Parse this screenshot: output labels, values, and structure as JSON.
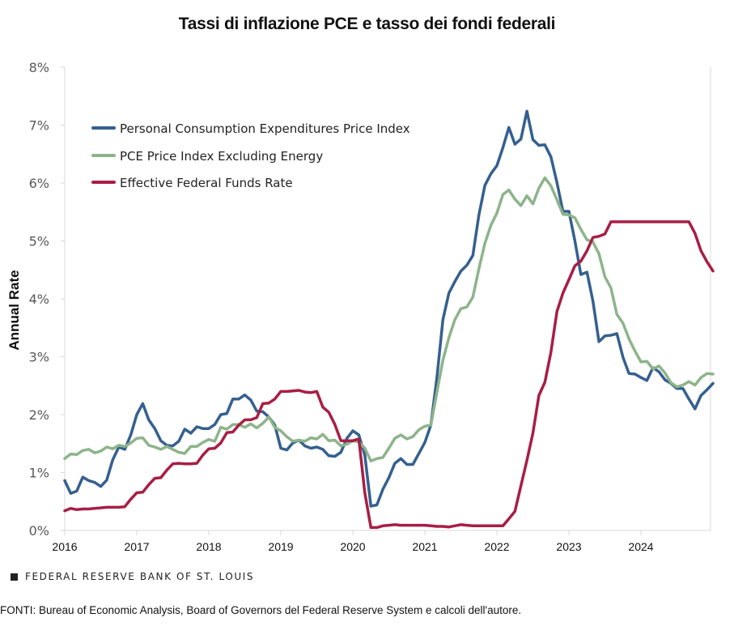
{
  "chart_data": {
    "type": "line",
    "title": "Tassi di inflazione PCE e tasso dei fondi federali",
    "xlabel": "",
    "ylabel": "Annual Rate",
    "ylim": [
      0,
      8
    ],
    "xlim": [
      2016.0,
      2024.917
    ],
    "grid": false,
    "legend_position": "top-left",
    "y_ticks": [
      {
        "value": 0,
        "label": "0%"
      },
      {
        "value": 1,
        "label": "1%"
      },
      {
        "value": 2,
        "label": "2%"
      },
      {
        "value": 3,
        "label": "3%"
      },
      {
        "value": 4,
        "label": "4%"
      },
      {
        "value": 5,
        "label": "5%"
      },
      {
        "value": 6,
        "label": "6%"
      },
      {
        "value": 7,
        "label": "7%"
      },
      {
        "value": 8,
        "label": "8%"
      }
    ],
    "x_ticks": [
      {
        "value": 2016,
        "label": "2016"
      },
      {
        "value": 2017,
        "label": "2017"
      },
      {
        "value": 2018,
        "label": "2018"
      },
      {
        "value": 2019,
        "label": "2019"
      },
      {
        "value": 2020,
        "label": "2020"
      },
      {
        "value": 2021,
        "label": "2021"
      },
      {
        "value": 2022,
        "label": "2022"
      },
      {
        "value": 2023,
        "label": "2023"
      },
      {
        "value": 2024,
        "label": "2024"
      }
    ],
    "x_start": 2016.0,
    "x_step_months": 1,
    "series": [
      {
        "name": "Personal Consumption Expenditures Price Index",
        "color": "#35608F",
        "values": [
          0.86,
          0.64,
          0.68,
          0.92,
          0.86,
          0.83,
          0.76,
          0.87,
          1.22,
          1.44,
          1.4,
          1.65,
          2.0,
          2.19,
          1.91,
          1.76,
          1.55,
          1.47,
          1.46,
          1.54,
          1.75,
          1.68,
          1.79,
          1.76,
          1.76,
          1.83,
          2.0,
          2.02,
          2.27,
          2.27,
          2.34,
          2.25,
          2.06,
          2.05,
          1.96,
          1.82,
          1.42,
          1.39,
          1.51,
          1.56,
          1.46,
          1.42,
          1.44,
          1.4,
          1.29,
          1.28,
          1.35,
          1.59,
          1.72,
          1.65,
          1.3,
          0.42,
          0.44,
          0.71,
          0.91,
          1.16,
          1.24,
          1.14,
          1.14,
          1.33,
          1.52,
          1.82,
          2.63,
          3.64,
          4.1,
          4.3,
          4.48,
          4.58,
          4.75,
          5.45,
          5.96,
          6.16,
          6.3,
          6.61,
          6.96,
          6.67,
          6.76,
          7.24,
          6.75,
          6.65,
          6.66,
          6.45,
          6.01,
          5.51,
          5.51,
          5.0,
          4.42,
          4.46,
          3.96,
          3.26,
          3.36,
          3.37,
          3.4,
          2.99,
          2.71,
          2.7,
          2.64,
          2.59,
          2.81,
          2.74,
          2.6,
          2.54,
          2.45,
          2.45,
          2.27,
          2.1,
          2.33,
          2.43,
          2.54
        ]
      },
      {
        "name": "PCE Price Index Excluding Energy",
        "color": "#8DB48A",
        "values": [
          1.24,
          1.32,
          1.31,
          1.38,
          1.4,
          1.34,
          1.37,
          1.44,
          1.41,
          1.47,
          1.45,
          1.51,
          1.59,
          1.6,
          1.47,
          1.44,
          1.4,
          1.45,
          1.4,
          1.35,
          1.33,
          1.45,
          1.45,
          1.52,
          1.57,
          1.54,
          1.78,
          1.75,
          1.83,
          1.83,
          1.78,
          1.84,
          1.77,
          1.85,
          1.96,
          1.78,
          1.72,
          1.62,
          1.54,
          1.56,
          1.54,
          1.6,
          1.58,
          1.66,
          1.55,
          1.56,
          1.46,
          1.49,
          1.55,
          1.53,
          1.42,
          1.2,
          1.24,
          1.26,
          1.42,
          1.59,
          1.65,
          1.58,
          1.62,
          1.74,
          1.8,
          1.82,
          2.38,
          2.94,
          3.33,
          3.64,
          3.83,
          3.86,
          4.03,
          4.52,
          4.96,
          5.27,
          5.48,
          5.8,
          5.88,
          5.72,
          5.61,
          5.78,
          5.64,
          5.91,
          6.09,
          5.95,
          5.71,
          5.46,
          5.45,
          5.4,
          5.2,
          5.02,
          4.98,
          4.78,
          4.38,
          4.19,
          3.73,
          3.58,
          3.31,
          3.1,
          2.91,
          2.92,
          2.79,
          2.84,
          2.72,
          2.55,
          2.48,
          2.51,
          2.57,
          2.51,
          2.64,
          2.71,
          2.7
        ]
      },
      {
        "name": "Effective Federal Funds Rate",
        "color": "#A81E45",
        "values": [
          0.34,
          0.38,
          0.36,
          0.37,
          0.37,
          0.38,
          0.39,
          0.4,
          0.4,
          0.4,
          0.41,
          0.54,
          0.65,
          0.66,
          0.79,
          0.9,
          0.91,
          1.04,
          1.15,
          1.16,
          1.15,
          1.15,
          1.16,
          1.3,
          1.41,
          1.42,
          1.51,
          1.69,
          1.7,
          1.82,
          1.91,
          1.91,
          1.95,
          2.19,
          2.2,
          2.27,
          2.4,
          2.4,
          2.41,
          2.42,
          2.39,
          2.38,
          2.4,
          2.13,
          2.04,
          1.83,
          1.55,
          1.55,
          1.55,
          1.58,
          0.65,
          0.05,
          0.05,
          0.08,
          0.09,
          0.1,
          0.09,
          0.09,
          0.09,
          0.09,
          0.09,
          0.08,
          0.07,
          0.07,
          0.06,
          0.08,
          0.1,
          0.09,
          0.08,
          0.08,
          0.08,
          0.08,
          0.08,
          0.08,
          0.2,
          0.33,
          0.77,
          1.21,
          1.68,
          2.33,
          2.56,
          3.08,
          3.78,
          4.1,
          4.33,
          4.57,
          4.65,
          4.83,
          5.06,
          5.08,
          5.12,
          5.33,
          5.33,
          5.33,
          5.33,
          5.33,
          5.33,
          5.33,
          5.33,
          5.33,
          5.33,
          5.33,
          5.33,
          5.33,
          5.33,
          5.13,
          4.83,
          4.64,
          4.48
        ]
      }
    ]
  },
  "footer": {
    "brand": "FEDERAL RESERVE BANK OF ST. LOUIS",
    "source": "FONTI: Bureau of Economic Analysis, Board of Governors del Federal Reserve System e calcoli dell'autore."
  }
}
